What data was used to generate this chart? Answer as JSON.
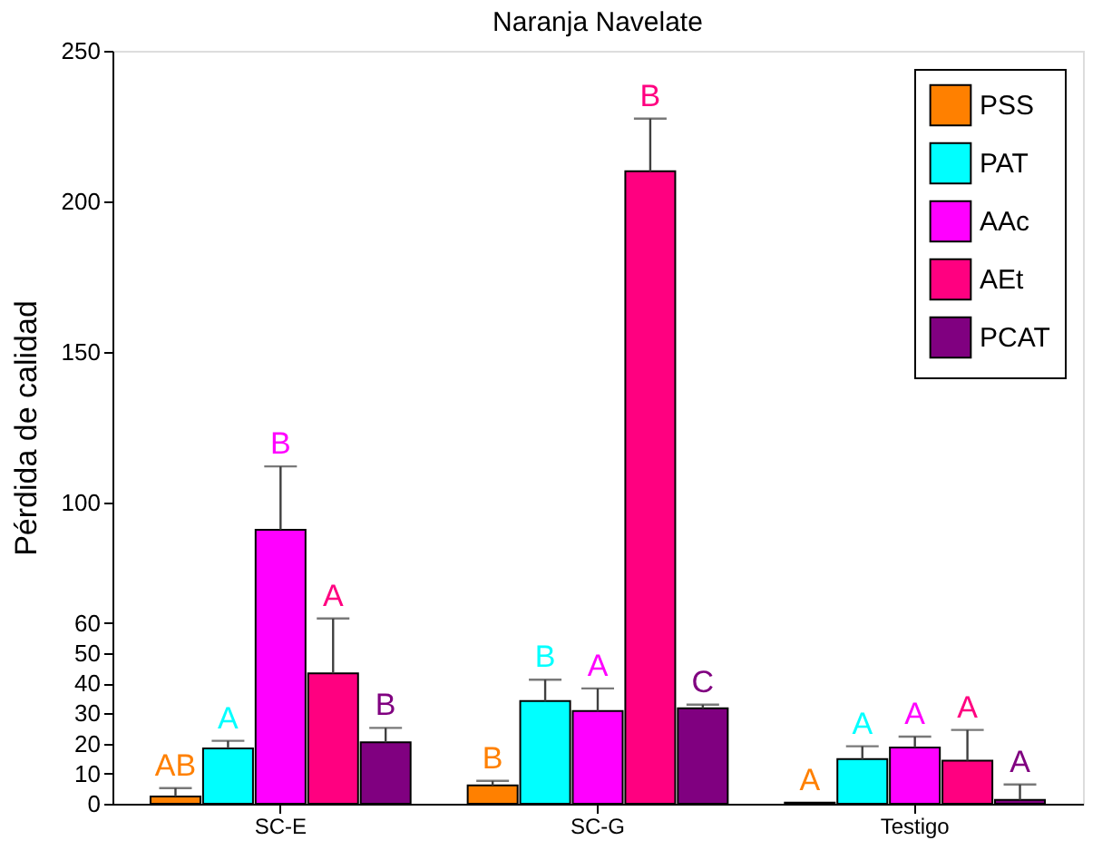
{
  "chart_data": {
    "type": "bar",
    "title": "Naranja Navelate",
    "ylabel": "Pérdida de calidad",
    "categories": [
      "SC-E",
      "SC-G",
      "Testigo"
    ],
    "series": [
      {
        "name": "PSS",
        "color": "#ff8000",
        "values": [
          2.4,
          6.1,
          0.4
        ],
        "errors": [
          [
            2.4,
            5.2
          ],
          [
            6.1,
            7.6
          ],
          null
        ],
        "value_labels": [
          "AB",
          "B",
          "A"
        ]
      },
      {
        "name": "PAT",
        "color": "#00ffff",
        "values": [
          18.4,
          34.1,
          14.8
        ],
        "errors": [
          [
            18.4,
            20.9
          ],
          [
            34.1,
            41.2
          ],
          [
            14.8,
            19.1
          ]
        ],
        "value_labels": [
          "A",
          "B",
          "A"
        ]
      },
      {
        "name": "AAc",
        "color": "#ff00ff",
        "values": [
          91,
          30.8,
          18.7
        ],
        "errors": [
          [
            91,
            112
          ],
          [
            30.8,
            38.3
          ],
          [
            18.7,
            22.3
          ]
        ],
        "value_labels": [
          "B",
          "A",
          "A"
        ]
      },
      {
        "name": "AEt",
        "color": "#ff0080",
        "values": [
          43.3,
          210,
          14.3
        ],
        "errors": [
          [
            43.3,
            61.5
          ],
          [
            210,
            227.5
          ],
          [
            14.3,
            24.5
          ]
        ],
        "value_labels": [
          "A",
          "B",
          "A"
        ]
      },
      {
        "name": "PCAT",
        "color": "#800080",
        "values": [
          20.4,
          31.7,
          1.3
        ],
        "errors": [
          [
            20.4,
            25.2
          ],
          [
            31.7,
            32.9
          ],
          [
            1.3,
            6.4
          ]
        ],
        "value_labels": [
          "B",
          "C",
          "A"
        ]
      }
    ],
    "ylim": [
      0,
      250
    ],
    "yticks": [
      0,
      10,
      20,
      30,
      40,
      50,
      60,
      100,
      150,
      200,
      250
    ],
    "legend": "top right",
    "grid": false
  }
}
